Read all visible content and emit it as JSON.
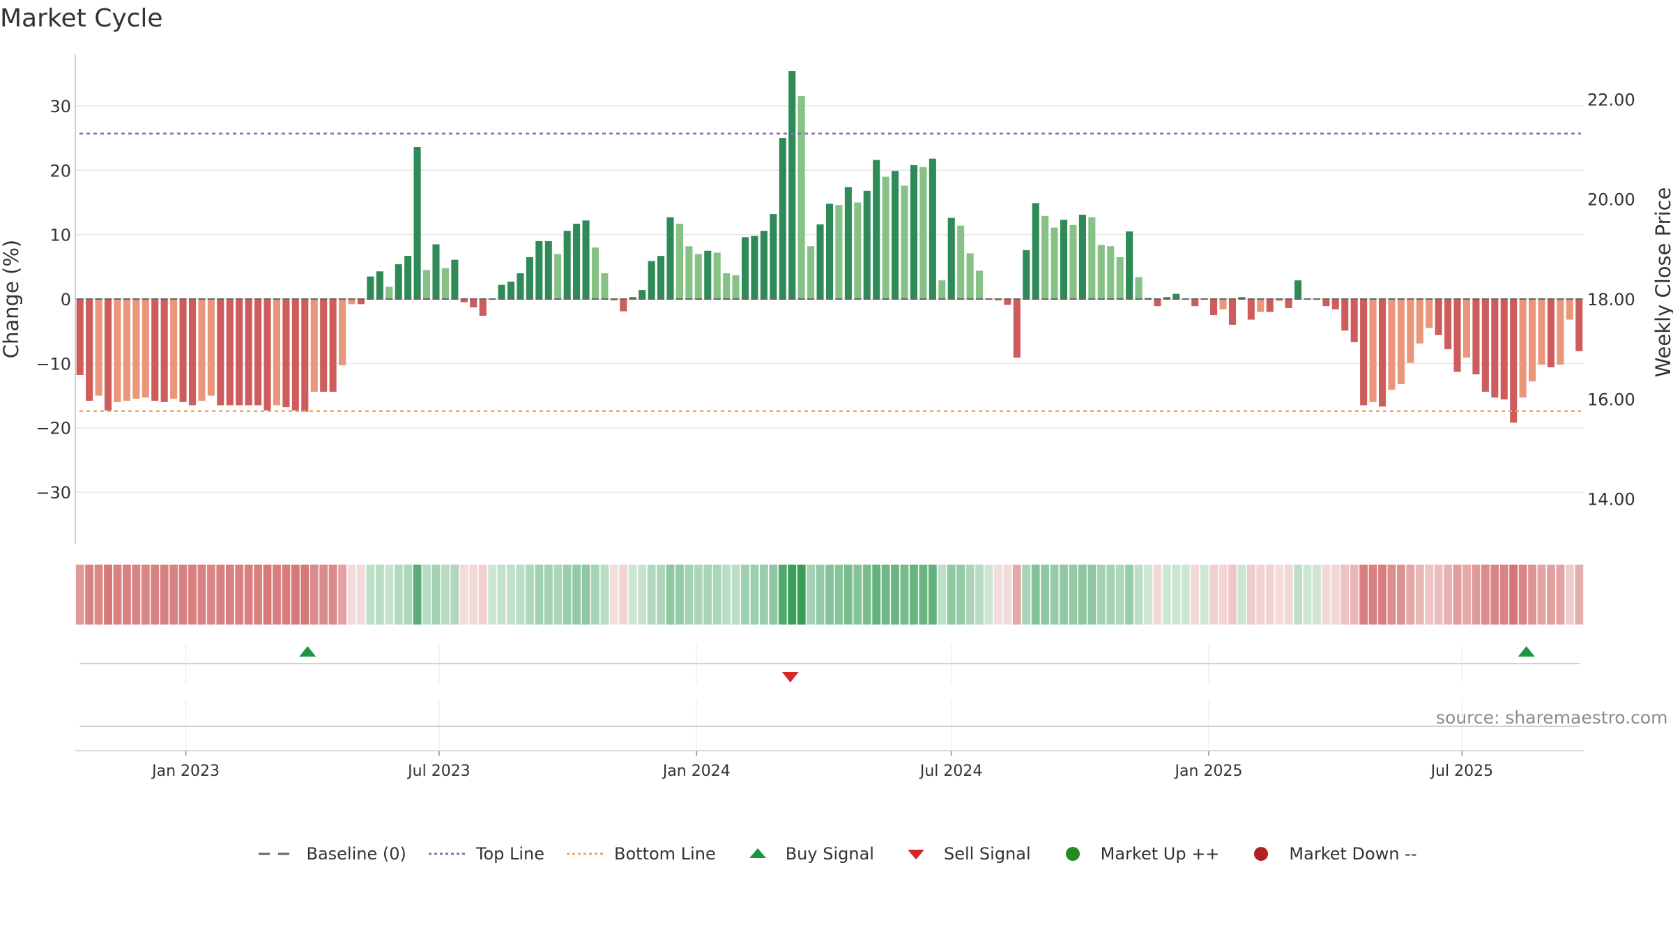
{
  "title": "Market Cycle",
  "source_note": "source: sharemaestro.com",
  "colors": {
    "strong_up": "#2e8b57",
    "weak_up": "#86c286",
    "strong_down": "#cd5c5c",
    "weak_down": "#e9967a",
    "top_line": "#9467bd",
    "bottom_line": "#f4a460",
    "baseline": "#666666",
    "buy": "#1a9641",
    "sell": "#d62728",
    "market_up": "#228b22",
    "market_down": "#b22222"
  },
  "legend": [
    {
      "label": "Baseline (0)",
      "kind": "dash",
      "color": "#666666"
    },
    {
      "label": "Top Line",
      "kind": "dot",
      "color": "#9467bd"
    },
    {
      "label": "Bottom Line",
      "kind": "dot",
      "color": "#f4a460"
    },
    {
      "label": "Buy Signal",
      "kind": "tri-up",
      "color": "#1a9641"
    },
    {
      "label": "Sell Signal",
      "kind": "tri-down",
      "color": "#d62728"
    },
    {
      "label": "Market Up ++",
      "kind": "circle",
      "color": "#228b22"
    },
    {
      "label": "Market Down --",
      "kind": "circle",
      "color": "#b22222"
    }
  ],
  "chart_data": {
    "type": "bar",
    "title": "Market Cycle",
    "ylabel": "Change (%)",
    "y2label": "Weekly Close Price",
    "ylim": [
      -38,
      38
    ],
    "yticks": [
      30,
      20,
      10,
      0,
      -10,
      -20,
      -30
    ],
    "ytick_labels": [
      "30",
      "20",
      "10",
      "0",
      "−10",
      "−20",
      "−30"
    ],
    "y2lim": [
      13.1,
      22.9
    ],
    "y2ticks": [
      22.0,
      20.0,
      18.0,
      16.0,
      14.0
    ],
    "y2tick_labels": [
      "22.00",
      "20.00",
      "18.00",
      "16.00",
      "14.00"
    ],
    "top_line": 25.7,
    "bottom_line": -17.4,
    "grid": true,
    "x_start": "2022-10-14",
    "x_end": "2025-09-26",
    "date_ticks": [
      {
        "date": "2023-01-01",
        "label": "Jan 2023"
      },
      {
        "date": "2023-07-01",
        "label": "Jul 2023"
      },
      {
        "date": "2024-01-01",
        "label": "Jan 2024"
      },
      {
        "date": "2024-07-01",
        "label": "Jul 2024"
      },
      {
        "date": "2025-01-01",
        "label": "Jan 2025"
      },
      {
        "date": "2025-07-01",
        "label": "Jul 2025"
      }
    ],
    "values": [
      -11.8,
      -15.8,
      -15.0,
      -17.3,
      -16.0,
      -15.8,
      -15.5,
      -15.3,
      -15.8,
      -16.0,
      -15.5,
      -16.0,
      -16.5,
      -15.8,
      -15.0,
      -16.5,
      -16.5,
      -16.5,
      -16.5,
      -16.5,
      -17.3,
      -16.5,
      -16.8,
      -17.3,
      -17.5,
      -14.4,
      -14.4,
      -14.4,
      -10.3,
      -0.8,
      -0.8,
      3.5,
      4.3,
      1.9,
      5.4,
      6.7,
      23.6,
      4.5,
      8.5,
      4.8,
      6.1,
      -0.5,
      -1.3,
      -2.6,
      0.0,
      2.2,
      2.7,
      4.0,
      6.5,
      9.0,
      9.0,
      7.0,
      10.6,
      11.7,
      12.2,
      8.0,
      4.0,
      -0.2,
      -1.9,
      0.3,
      1.4,
      5.9,
      6.7,
      12.7,
      11.7,
      8.2,
      7.0,
      7.5,
      7.2,
      4.0,
      3.7,
      9.6,
      9.8,
      10.6,
      13.2,
      25.0,
      35.4,
      31.5,
      8.2,
      11.6,
      14.8,
      14.6,
      17.4,
      15.0,
      16.8,
      21.6,
      19.0,
      19.9,
      17.6,
      20.8,
      20.5,
      21.8,
      2.9,
      12.6,
      11.4,
      7.1,
      4.4,
      0.1,
      -0.2,
      -0.9,
      -9.1,
      7.6,
      14.9,
      12.9,
      11.1,
      12.3,
      11.5,
      13.1,
      12.7,
      8.4,
      8.2,
      6.5,
      10.5,
      3.4,
      0.2,
      -1.1,
      0.3,
      0.8,
      0.0,
      -1.1,
      0.0,
      -2.5,
      -1.6,
      -4.0,
      0.3,
      -3.2,
      -2.0,
      -2.0,
      -0.3,
      -1.4,
      2.9,
      0.1,
      0.0,
      -1.1,
      -1.6,
      -4.9,
      -6.7,
      -16.5,
      -16.0,
      -16.7,
      -14.1,
      -13.2,
      -9.9,
      -6.9,
      -4.5,
      -5.6,
      -7.8,
      -11.3,
      -9.1,
      -11.7,
      -14.4,
      -15.3,
      -15.6,
      -19.2,
      -15.3,
      -12.8,
      -10.2,
      -10.6,
      -10.2,
      -3.2,
      -8.1
    ],
    "signals": [
      {
        "type": "buy",
        "date": "2023-03-29"
      },
      {
        "type": "sell",
        "date": "2024-03-08"
      },
      {
        "type": "buy",
        "date": "2025-08-16"
      }
    ]
  }
}
